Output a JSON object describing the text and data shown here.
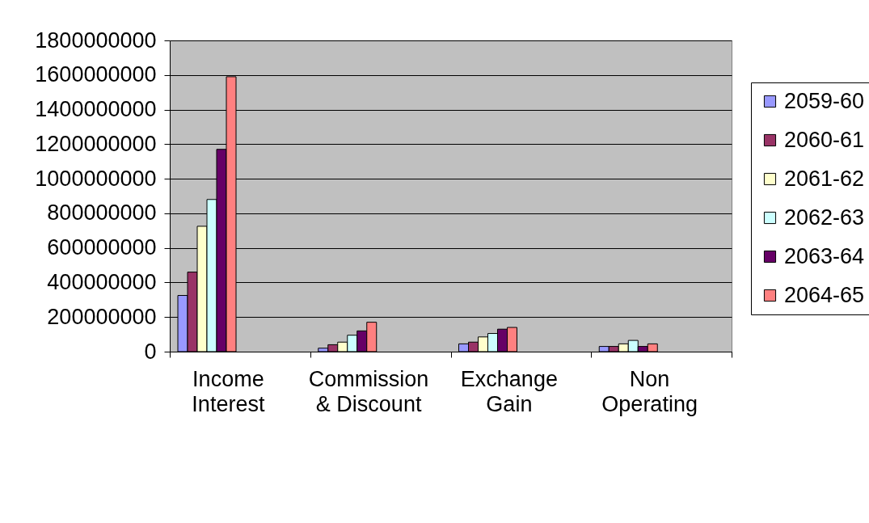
{
  "chart_data": {
    "type": "bar",
    "categories": [
      "Income Interest",
      "Commission & Discount",
      "Exchange Gain",
      "Non Operating"
    ],
    "series": [
      {
        "name": "2059-60",
        "color": "#9999ff",
        "values": [
          325000000,
          20000000,
          45000000,
          30000000
        ]
      },
      {
        "name": "2060-61",
        "color": "#993366",
        "values": [
          460000000,
          40000000,
          55000000,
          30000000
        ]
      },
      {
        "name": "2061-62",
        "color": "#ffffcc",
        "values": [
          725000000,
          55000000,
          85000000,
          45000000
        ]
      },
      {
        "name": "2062-63",
        "color": "#ccffff",
        "values": [
          880000000,
          95000000,
          105000000,
          65000000
        ]
      },
      {
        "name": "2063-64",
        "color": "#660066",
        "values": [
          1170000000,
          120000000,
          130000000,
          30000000
        ]
      },
      {
        "name": "2064-65",
        "color": "#ff8080",
        "values": [
          1590000000,
          170000000,
          140000000,
          45000000
        ]
      }
    ],
    "ylim": [
      0,
      1800000000
    ],
    "yticks": [
      0,
      200000000,
      400000000,
      600000000,
      800000000,
      1000000000,
      1200000000,
      1400000000,
      1600000000,
      1800000000
    ],
    "grid": "y",
    "legend": "right"
  }
}
